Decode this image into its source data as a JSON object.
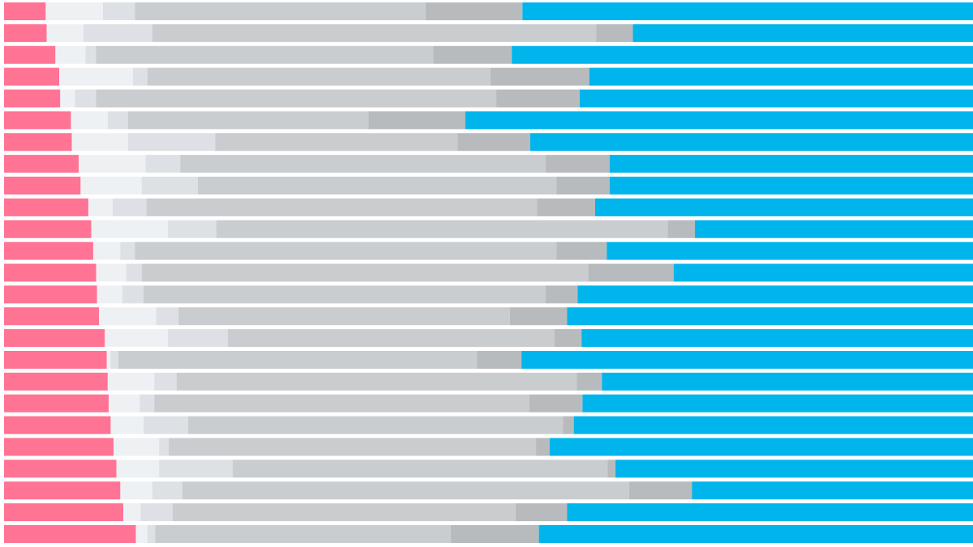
{
  "chart_data": {
    "type": "stacked-bar-horizontal",
    "xlim": [
      0,
      100
    ],
    "series": [
      {
        "color": "#ff7394",
        "values": [
          4.3,
          4.4,
          5.3,
          5.7,
          5.8,
          6.9,
          7.0,
          7.7,
          7.9,
          8.7,
          9.0,
          9.2,
          9.5,
          9.6,
          9.8,
          10.4,
          10.6,
          10.7,
          10.8,
          11.0,
          11.3,
          11.6,
          12.0,
          12.3,
          13.6
        ]
      },
      {
        "color": "#eef1f4",
        "values": [
          5.9,
          3.8,
          3.1,
          7.6,
          1.5,
          3.8,
          5.8,
          6.9,
          6.3,
          2.5,
          7.9,
          2.8,
          3.1,
          2.6,
          5.9,
          6.5,
          0.4,
          4.8,
          3.2,
          3.4,
          4.7,
          4.4,
          3.3,
          1.8,
          1.2
        ]
      },
      {
        "color": "#dde1e5",
        "values": [
          3.3,
          7.1,
          1.1,
          1.5,
          2.2,
          2.1,
          9.0,
          3.6,
          5.8,
          3.5,
          5.0,
          1.5,
          1.6,
          2.2,
          2.3,
          6.2,
          0.8,
          2.3,
          1.5,
          4.6,
          1.0,
          7.6,
          3.1,
          3.3,
          0.8
        ]
      },
      {
        "color": "#c9cdd0",
        "values": [
          30.0,
          45.8,
          34.8,
          35.4,
          41.3,
          24.8,
          25.0,
          37.7,
          37.0,
          40.3,
          46.6,
          43.5,
          46.1,
          41.5,
          34.2,
          33.7,
          37.0,
          41.3,
          38.7,
          38.7,
          37.9,
          38.7,
          46.1,
          35.4,
          30.5
        ]
      },
      {
        "color": "#b8bbbe",
        "values": [
          10.0,
          3.8,
          8.1,
          10.2,
          8.6,
          10.0,
          7.5,
          6.6,
          5.5,
          6.0,
          2.8,
          5.2,
          8.8,
          3.3,
          5.9,
          2.8,
          4.6,
          2.6,
          5.5,
          1.1,
          1.4,
          0.8,
          6.5,
          5.3,
          9.1
        ]
      },
      {
        "color": "#00b5ec",
        "values": [
          46.5,
          35.1,
          47.6,
          39.6,
          40.6,
          52.4,
          45.7,
          37.5,
          37.5,
          39.0,
          28.7,
          37.8,
          30.9,
          40.8,
          41.9,
          40.4,
          46.6,
          38.3,
          40.3,
          41.2,
          43.7,
          36.9,
          29.0,
          41.9,
          44.8
        ]
      }
    ]
  }
}
